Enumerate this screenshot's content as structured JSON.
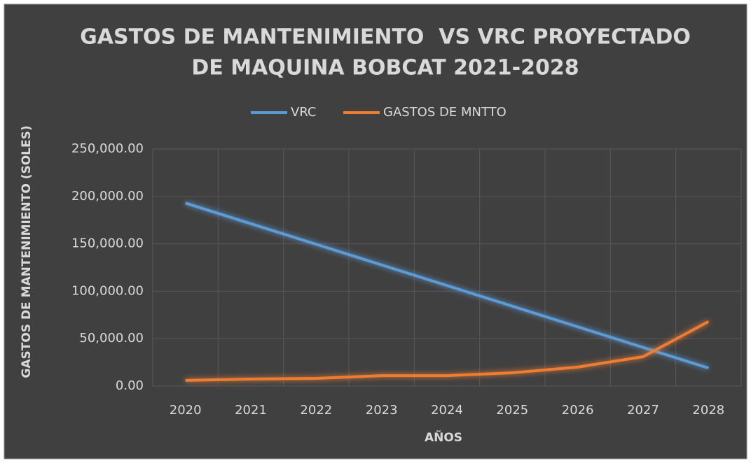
{
  "chart_data": {
    "type": "line",
    "title": [
      "GASTOS DE MANTENIMIENTO  VS VRC PROYECTADO",
      "DE MAQUINA BOBCAT 2021-2028"
    ],
    "x_label": "AÑOS",
    "y_label": "GASTOS DE MANTENIMIENTO (SOLES)",
    "categories": [
      "2020",
      "2021",
      "2022",
      "2023",
      "2024",
      "2025",
      "2026",
      "2027",
      "2028"
    ],
    "series": [
      {
        "name": "VRC",
        "color": "#5b9bd5",
        "values": [
          193000,
          171250,
          149500,
          127750,
          106000,
          84250,
          62500,
          40750,
          19000
        ]
      },
      {
        "name": "GASTOS DE MNTTO",
        "color": "#ed7d31",
        "values": [
          6000,
          7400,
          8100,
          11000,
          11000,
          14000,
          20000,
          31000,
          68000
        ]
      }
    ],
    "ylim": [
      0,
      250000
    ],
    "yticks": [
      {
        "value": 0,
        "label": "0.00"
      },
      {
        "value": 50000,
        "label": "50,000.00"
      },
      {
        "value": 100000,
        "label": "100,000.00"
      },
      {
        "value": 150000,
        "label": "150,000.00"
      },
      {
        "value": 200000,
        "label": "200,000.00"
      },
      {
        "value": 250000,
        "label": "250,000.00"
      }
    ],
    "grid": true,
    "legend": "top"
  }
}
